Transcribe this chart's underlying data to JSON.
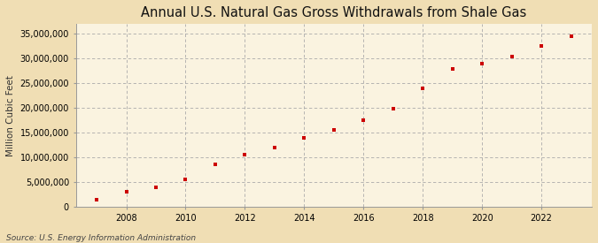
{
  "title": "Annual U.S. Natural Gas Gross Withdrawals from Shale Gas",
  "ylabel": "Million Cubic Feet",
  "source": "Source: U.S. Energy Information Administration",
  "background_color": "#f0deb4",
  "plot_background_color": "#faf3e0",
  "grid_color": "#aaaaaa",
  "marker_color": "#cc0000",
  "years": [
    2007,
    2008,
    2009,
    2010,
    2011,
    2012,
    2013,
    2014,
    2015,
    2016,
    2017,
    2018,
    2019,
    2020,
    2021,
    2022,
    2023
  ],
  "values": [
    1500000,
    3000000,
    4000000,
    5500000,
    8500000,
    10500000,
    12000000,
    14000000,
    15500000,
    17500000,
    19800000,
    24000000,
    28000000,
    29000000,
    30500000,
    32500000,
    34500000
  ],
  "ylim": [
    0,
    37000000
  ],
  "yticks": [
    0,
    5000000,
    10000000,
    15000000,
    20000000,
    25000000,
    30000000,
    35000000
  ],
  "xticks": [
    2008,
    2010,
    2012,
    2014,
    2016,
    2018,
    2020,
    2022
  ],
  "xlim_left": 2006.3,
  "xlim_right": 2023.7,
  "title_fontsize": 10.5,
  "label_fontsize": 7.5,
  "tick_fontsize": 7,
  "source_fontsize": 6.5
}
